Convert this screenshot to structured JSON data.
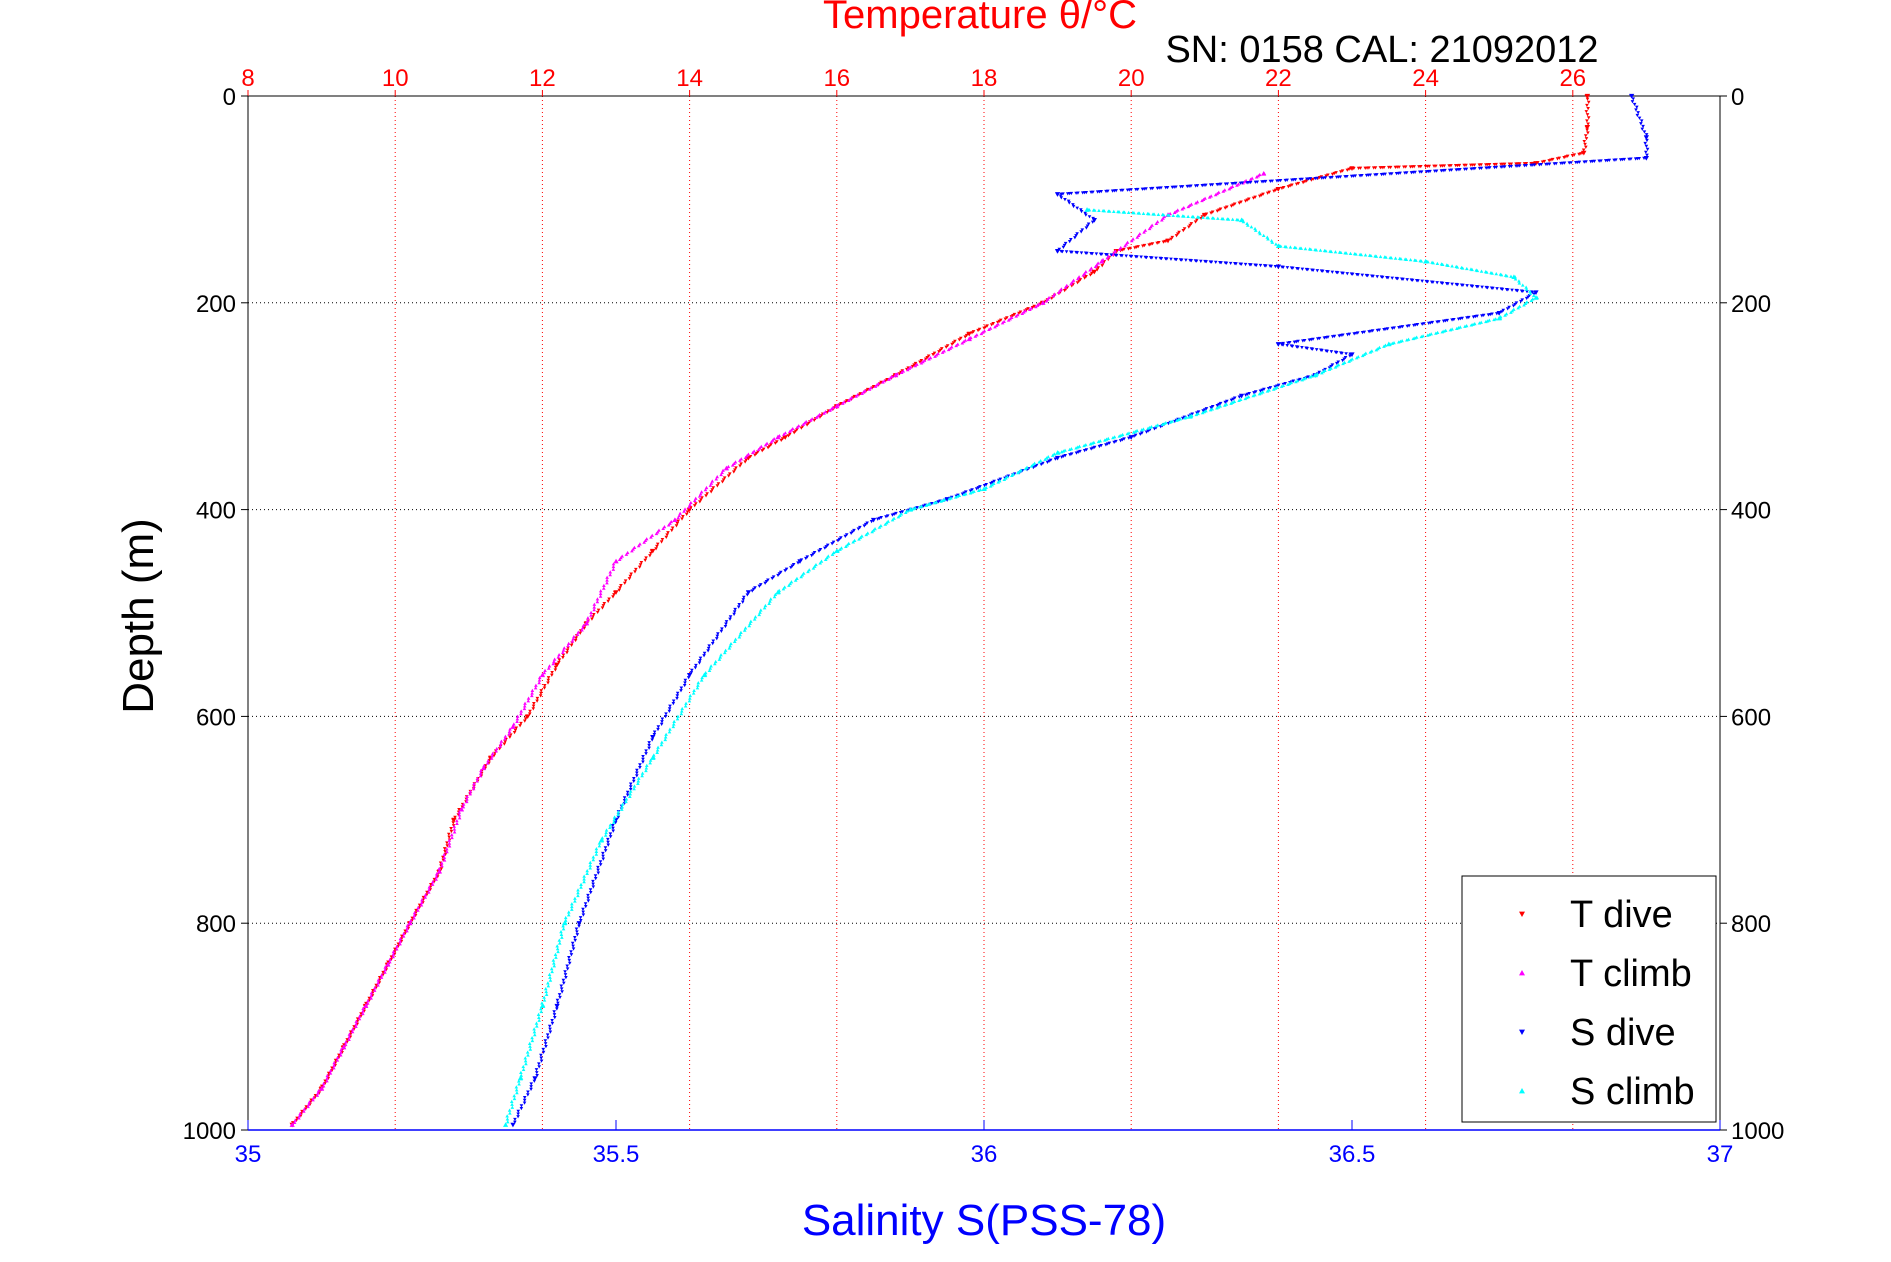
{
  "chart_data": {
    "type": "scatter",
    "title": "Temperature θ/°C",
    "subtitle": "SN: 0158  CAL: 21092012",
    "xlabel": "Salinity S(PSS-78)",
    "ylabel": "Depth (m)",
    "top_axis": {
      "label": "Temperature θ/°C",
      "range": [
        8,
        28
      ],
      "ticks": [
        "8",
        "10",
        "12",
        "14",
        "16",
        "18",
        "20",
        "22",
        "24",
        "26"
      ],
      "grid": true,
      "color": "#ff0000"
    },
    "bottom_axis": {
      "label": "Salinity S(PSS-78)",
      "range": [
        35,
        37
      ],
      "ticks": [
        "35",
        "35.5",
        "36",
        "36.5",
        "37"
      ],
      "color": "#0000ff"
    },
    "y_axis": {
      "label": "Depth (m)",
      "range": [
        0,
        1000
      ],
      "reversed": true,
      "ticks": [
        "0",
        "200",
        "400",
        "600",
        "800",
        "1000"
      ],
      "grid": true
    },
    "legend": {
      "placement": "bottom-right",
      "entries": [
        {
          "name": "T dive",
          "color": "#ff0000",
          "marker": "triangle-down"
        },
        {
          "name": "T climb",
          "color": "#ff00ff",
          "marker": "triangle-up"
        },
        {
          "name": "S dive",
          "color": "#0000ff",
          "marker": "triangle-down"
        },
        {
          "name": "S climb",
          "color": "#00ffff",
          "marker": "triangle-up"
        }
      ]
    },
    "series": [
      {
        "name": "T dive",
        "axis": "temperature",
        "color": "#ff0000",
        "x": [
          26.2,
          26.2,
          26.15,
          25.5,
          23,
          22,
          21,
          20.5,
          19.8,
          19.5,
          18.8,
          17.8,
          16.8,
          16,
          15.3,
          14.8,
          14,
          13.5,
          13,
          12.6,
          12.2,
          11.8,
          11.3,
          10.8,
          10.6,
          10.2,
          9.9,
          9.6,
          9.3,
          9.0,
          8.6
        ],
        "y": [
          0,
          30,
          55,
          65,
          70,
          90,
          115,
          140,
          150,
          170,
          200,
          230,
          270,
          300,
          330,
          350,
          400,
          440,
          480,
          510,
          550,
          600,
          640,
          700,
          750,
          800,
          840,
          880,
          920,
          960,
          995
        ]
      },
      {
        "name": "T climb",
        "axis": "temperature",
        "color": "#ff00ff",
        "x": [
          21.8,
          20.5,
          19.6,
          18.8,
          17.8,
          16.8,
          16.0,
          15.2,
          14.5,
          13.8,
          13.0,
          12.6,
          12.0,
          11.6,
          11.2,
          10.9,
          10.6,
          10.2,
          9.9,
          9.6,
          9.3,
          9.0,
          8.6
        ],
        "y": [
          75,
          115,
          160,
          200,
          235,
          270,
          300,
          330,
          360,
          410,
          450,
          510,
          560,
          610,
          650,
          690,
          750,
          800,
          840,
          880,
          920,
          960,
          995
        ]
      },
      {
        "name": "S dive",
        "axis": "salinity",
        "color": "#0000ff",
        "x": [
          36.88,
          36.9,
          36.9,
          36.1,
          36.15,
          36.1,
          36.4,
          36.75,
          36.7,
          36.4,
          36.5,
          36.45,
          36.35,
          36.2,
          36.1,
          35.95,
          35.85,
          35.75,
          35.68,
          35.6,
          35.55,
          35.5,
          35.45,
          35.42,
          35.39,
          35.36
        ],
        "y": [
          0,
          40,
          60,
          95,
          120,
          150,
          165,
          190,
          210,
          240,
          250,
          270,
          290,
          330,
          350,
          390,
          410,
          450,
          480,
          560,
          620,
          700,
          800,
          880,
          950,
          995
        ]
      },
      {
        "name": "S climb",
        "axis": "salinity",
        "color": "#00ffff",
        "x": [
          36.14,
          36.35,
          36.4,
          36.6,
          36.72,
          36.75,
          36.7,
          36.55,
          36.45,
          36.28,
          36.1,
          36.0,
          35.9,
          35.8,
          35.72,
          35.62,
          35.55,
          35.48,
          35.43,
          35.4,
          35.37,
          35.35
        ],
        "y": [
          110,
          120,
          145,
          160,
          175,
          195,
          215,
          240,
          270,
          310,
          345,
          380,
          400,
          440,
          480,
          560,
          640,
          720,
          800,
          880,
          950,
          995
        ]
      }
    ]
  }
}
